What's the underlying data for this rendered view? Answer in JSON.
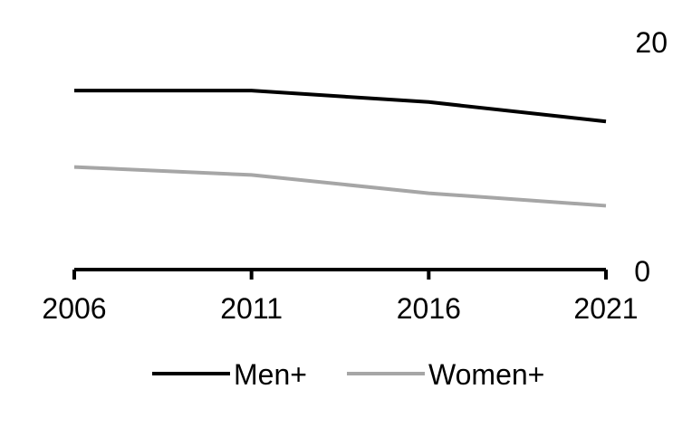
{
  "chart_data": {
    "type": "line",
    "x": [
      "2006",
      "2011",
      "2016",
      "2021"
    ],
    "series": [
      {
        "name": "Men+",
        "values": [
          15.7,
          15.7,
          14.7,
          13.0
        ],
        "color": "#000000"
      },
      {
        "name": "Women+",
        "values": [
          9.0,
          8.3,
          6.7,
          5.6
        ],
        "color": "#a6a6a6"
      }
    ],
    "ylim": [
      0,
      20
    ],
    "y_ticks": [
      "0",
      "20"
    ],
    "y_axis_side": "right",
    "grid": false,
    "legend_position": "bottom-center"
  }
}
